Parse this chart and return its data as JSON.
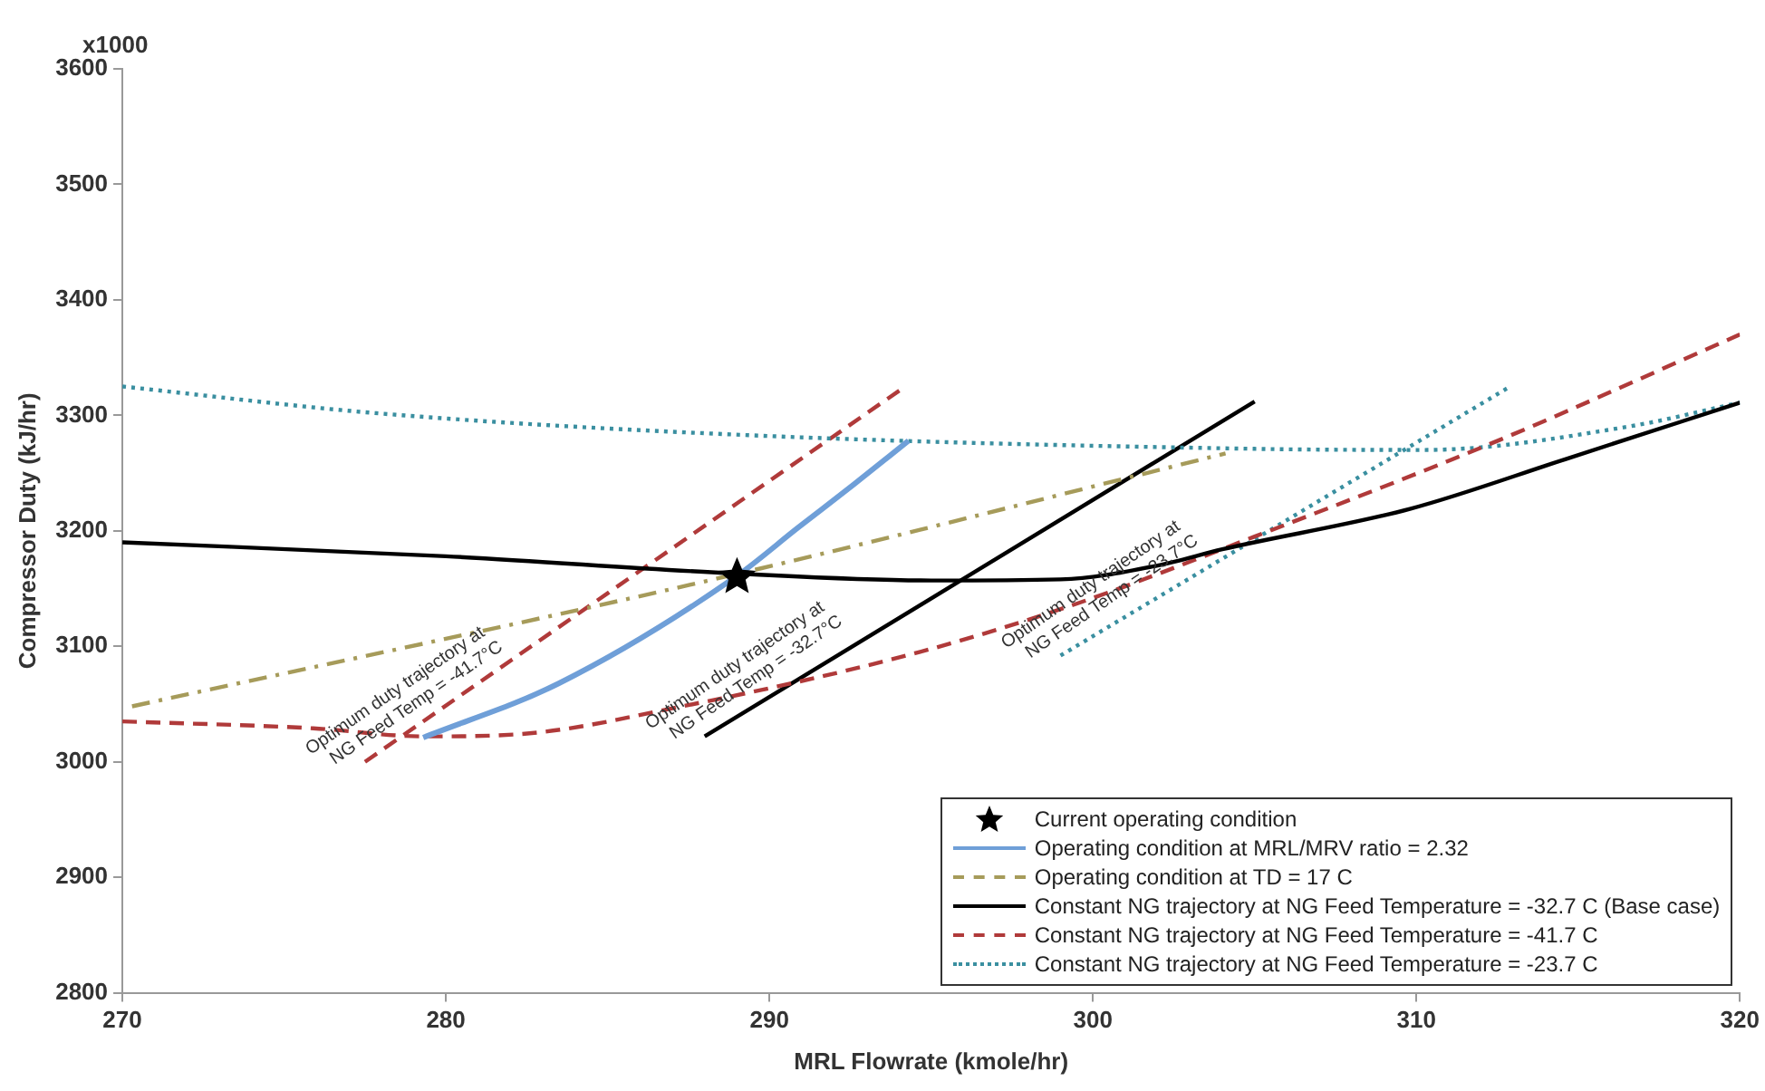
{
  "chart_data": {
    "type": "line",
    "xlabel": "MRL Flowrate (kmole/hr)",
    "ylabel": "Compressor Duty (kJ/hr)",
    "xlim": [
      270,
      320
    ],
    "xticks": [
      270,
      280,
      290,
      300,
      310,
      320
    ],
    "ylim": [
      2800,
      3600
    ],
    "yticks": [
      2800,
      2900,
      3000,
      3100,
      3200,
      3300,
      3400,
      3500,
      3600
    ],
    "grid": false,
    "legend": "bottom right",
    "series": [
      {
        "name": "Current operating condition",
        "type": "scatter",
        "marker": "star",
        "color": "#000000",
        "x": [
          289
        ],
        "values": [
          3160
        ]
      },
      {
        "name": "Operating condition at MRL/MRV ratio = 2.32",
        "color": "#6f9fd8",
        "line_style": "solid",
        "marker": "none",
        "x": [
          279.3,
          283.5,
          288.9,
          290.9,
          292.6,
          294.3
        ],
        "values": [
          3021,
          3068,
          3159,
          3203,
          3240,
          3278
        ]
      },
      {
        "name": "Operating condition at TD = 17 C",
        "color": "#a69b5a",
        "line_style": "dashdot",
        "marker": "none",
        "x": [
          270.3,
          288.9,
          304.1
        ],
        "values": [
          3048,
          3162,
          3267
        ]
      },
      {
        "name": "Constant NG trajectory at NG Feed Temperature = -32.7 C (Base case)",
        "color": "#000000",
        "line_style": "solid",
        "marker": "none",
        "x": [
          270,
          280,
          289,
          295,
          299,
          302,
          304,
          309.8,
          314.6,
          320
        ],
        "values": [
          3190,
          3178,
          3163,
          3157,
          3158,
          3170,
          3184,
          3219,
          3262,
          3311
        ]
      },
      {
        "name": "Constant NG trajectory at NG Feed Temperature = -41.7 C",
        "color": "#b03a3a",
        "line_style": "dashed",
        "marker": "none",
        "x": [
          270,
          275.9,
          279.3,
          282.3,
          287.3,
          294.5,
          299.3,
          305,
          312.6,
          320
        ],
        "values": [
          3035,
          3029,
          3022,
          3024,
          3048,
          3094,
          3135,
          3195,
          3279,
          3370
        ]
      },
      {
        "name": "Constant NG trajectory at NG Feed Temperature = -23.7 C",
        "color": "#3a8fa0",
        "line_style": "dotted",
        "marker": "none",
        "x": [
          270,
          277.8,
          289.2,
          305,
          310.2,
          316.5,
          320
        ],
        "values": [
          3325,
          3302,
          3283,
          3271,
          3270,
          3290,
          3311
        ]
      },
      {
        "color": "#000000",
        "line_style": "solid",
        "marker": "none",
        "x": [
          288,
          305
        ],
        "values": [
          3022,
          3312
        ]
      },
      {
        "color": "#b03a3a",
        "line_style": "dashed",
        "marker": "none",
        "x": [
          277.5,
          294.2
        ],
        "values": [
          3000,
          3325
        ]
      },
      {
        "color": "#3a8fa0",
        "line_style": "dotted",
        "marker": "none",
        "x": [
          299,
          312.9
        ],
        "values": [
          3092,
          3325
        ]
      }
    ],
    "annotations": [
      "x1000",
      {
        "text": "Optimum duty trajectory at\nNG Feed Temp = -41.7°C",
        "x": 277.5,
        "y": 3000
      },
      {
        "text": "Optimum duty trajectory at\nNG Feed Temp = -32.7°C",
        "x": 288,
        "y": 3022
      },
      {
        "text": "Optimum duty trajectory at\nNG Feed Temp = -23.7°C",
        "x": 299,
        "y": 3092
      }
    ]
  }
}
